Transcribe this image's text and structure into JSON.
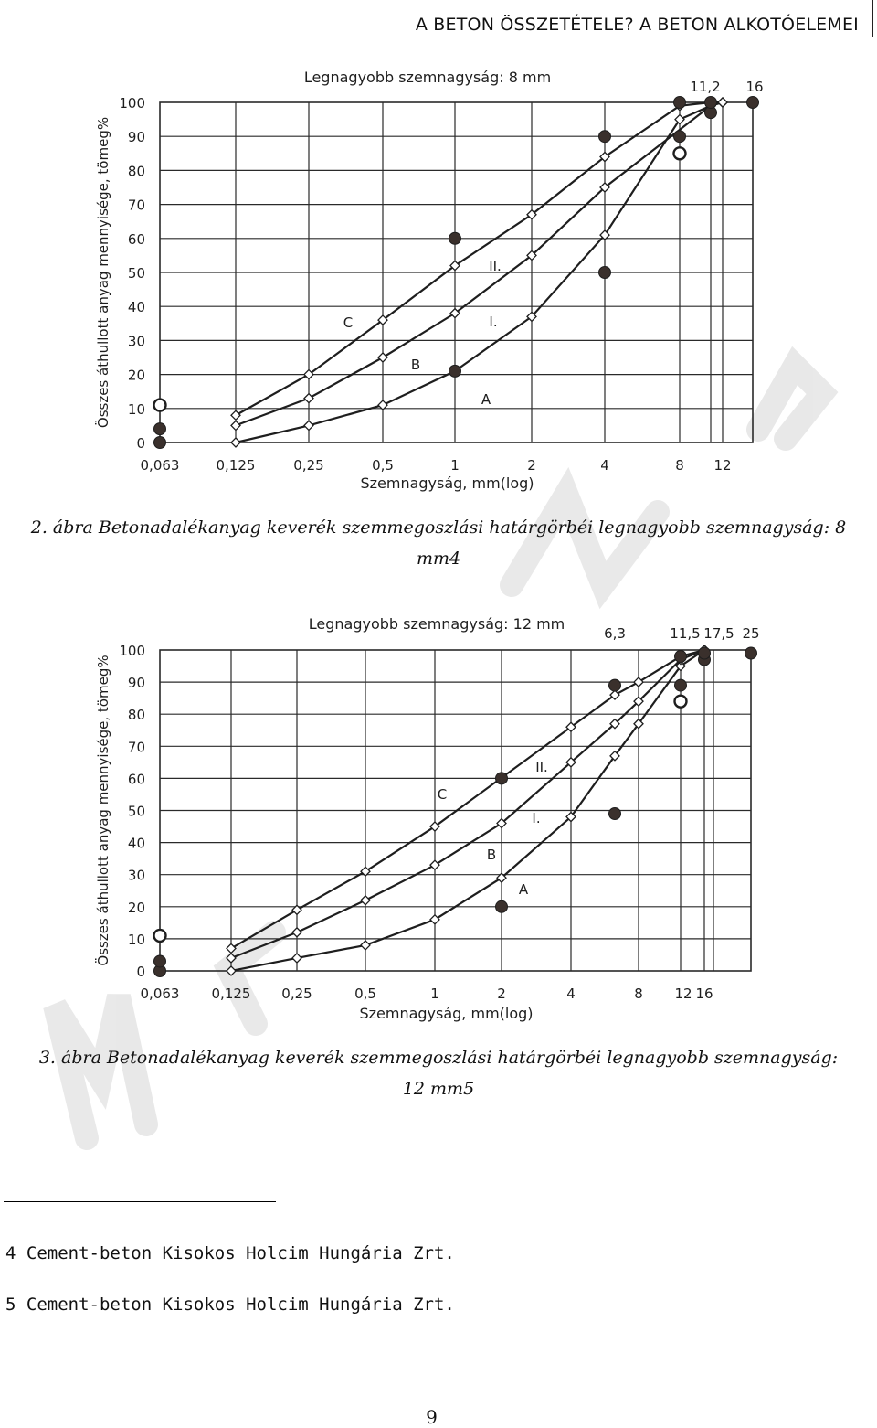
{
  "header": {
    "running_title": "A BETON ÖSSZETÉTELE? A BETON ALKOTÓELEMEI"
  },
  "chart_data": [
    {
      "type": "line",
      "title": "Legnagyobb szemnagyság: 8 mm",
      "xlabel": "Szemnagyság, mm(log)",
      "ylabel": "Összes áthullott anyag mennyisége, tömeg%",
      "x_scale": "log",
      "x_ticks": [
        "0,063",
        "0,125",
        "0,25",
        "0,5",
        "1",
        "2",
        "4",
        "8",
        "12"
      ],
      "x_top_labels": [
        "11,2",
        "16"
      ],
      "y_ticks": [
        0,
        10,
        20,
        30,
        40,
        50,
        60,
        70,
        80,
        90,
        100
      ],
      "ylim": [
        0,
        100
      ],
      "grid": true,
      "series": [
        {
          "name": "A",
          "marker": "diamond",
          "x": [
            0.125,
            0.25,
            0.5,
            1,
            2,
            4,
            8,
            11.2,
            12
          ],
          "y": [
            0,
            5,
            11,
            21,
            37,
            61,
            95,
            99,
            100
          ]
        },
        {
          "name": "B",
          "marker": "diamond",
          "x": [
            0.125,
            0.25,
            0.5,
            1,
            2,
            4,
            11.2,
            12
          ],
          "y": [
            5,
            13,
            25,
            38,
            55,
            75,
            99,
            100
          ]
        },
        {
          "name": "C",
          "marker": "diamond",
          "x": [
            0.125,
            0.25,
            0.5,
            1,
            2,
            4,
            8,
            11.2,
            12
          ],
          "y": [
            8,
            20,
            36,
            52,
            67,
            84,
            99,
            100,
            100
          ]
        }
      ],
      "curve_labels": [
        "A",
        "B",
        "C",
        "I.",
        "II."
      ],
      "limit_points": {
        "filled": [
          [
            0.063,
            0
          ],
          [
            0.063,
            4
          ],
          [
            1,
            21
          ],
          [
            1,
            60
          ],
          [
            4,
            50
          ],
          [
            4,
            90
          ],
          [
            8,
            90
          ],
          [
            8,
            100
          ],
          [
            11.2,
            97
          ],
          [
            11.2,
            100
          ],
          [
            16,
            100
          ]
        ],
        "open": [
          [
            0.063,
            11
          ],
          [
            8,
            85
          ]
        ]
      }
    },
    {
      "type": "line",
      "title": "Legnagyobb szemnagyság: 12 mm",
      "xlabel": "Szemnagyság, mm(log)",
      "ylabel": "Összes áthullott anyag mennyisége, tömeg%",
      "x_scale": "log",
      "x_ticks": [
        "0,063",
        "0,125",
        "0,25",
        "0,5",
        "1",
        "2",
        "4",
        "8",
        "12",
        "16"
      ],
      "x_top_labels": [
        "6,3",
        "11,5",
        "17,5",
        "25"
      ],
      "y_ticks": [
        0,
        10,
        20,
        30,
        40,
        50,
        60,
        70,
        80,
        90,
        100
      ],
      "ylim": [
        0,
        100
      ],
      "grid": true,
      "series": [
        {
          "name": "A",
          "marker": "diamond",
          "x": [
            0.125,
            0.25,
            0.5,
            1,
            2,
            4,
            6.3,
            8,
            11.5,
            16
          ],
          "y": [
            0,
            4,
            8,
            16,
            29,
            48,
            67,
            77,
            95,
            100
          ]
        },
        {
          "name": "B",
          "marker": "diamond",
          "x": [
            0.125,
            0.25,
            0.5,
            1,
            2,
            4,
            6.3,
            8,
            11.5,
            16
          ],
          "y": [
            4,
            12,
            22,
            33,
            46,
            65,
            77,
            84,
            97,
            100
          ]
        },
        {
          "name": "C",
          "marker": "diamond",
          "x": [
            0.125,
            0.25,
            0.5,
            1,
            4,
            6.3,
            8,
            11.5,
            16
          ],
          "y": [
            7,
            19,
            31,
            45,
            76,
            86,
            90,
            98,
            100
          ]
        }
      ],
      "curve_labels": [
        "A",
        "B",
        "C",
        "I.",
        "II."
      ],
      "limit_points": {
        "filled": [
          [
            0.063,
            0
          ],
          [
            0.063,
            3
          ],
          [
            2,
            20
          ],
          [
            2,
            60
          ],
          [
            6.3,
            49
          ],
          [
            6.3,
            89
          ],
          [
            11.5,
            89
          ],
          [
            11.5,
            98
          ],
          [
            16,
            97
          ],
          [
            16,
            99
          ],
          [
            25,
            99
          ]
        ],
        "open": [
          [
            0.063,
            11
          ],
          [
            11.5,
            84
          ]
        ]
      }
    }
  ],
  "captions": {
    "fig2_line1": "2. ábra Betonadalékanyag keverék szemmegoszlási határgörbéi legnagyobb szemnagyság: 8",
    "fig2_line2": "mm4",
    "fig3_line1": "3. ábra Betonadalékanyag keverék szemmegoszlási határgörbéi legnagyobb szemnagyság:",
    "fig3_line2": "12 mm5"
  },
  "footnotes": {
    "fn4": "4 Cement-beton Kisokos Holcim Hungária Zrt.",
    "fn5": "5 Cement-beton Kisokos Holcim Hungária Zrt."
  },
  "page_number": "9",
  "colors": {
    "line": "#1e1e1e",
    "grid": "#2a2a2a",
    "marker_fill": "#3a302c",
    "watermark": "#d8d8d8"
  }
}
